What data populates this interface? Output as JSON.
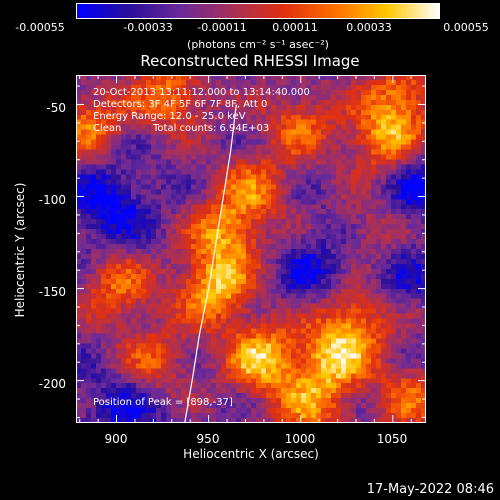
{
  "colorbar": {
    "ticks": [
      "-0.00055",
      "-0.00033",
      "-0.00011",
      "0.00011",
      "0.00033",
      "0.00055"
    ],
    "range": [
      -0.00055,
      0.00055
    ],
    "unit": "(photons cm⁻² s⁻¹ asec⁻²)",
    "colors": [
      "#0000ff",
      "#2b0f9a",
      "#6b2a9a",
      "#a8305a",
      "#e03010",
      "#ff7000",
      "#ffc800",
      "#ffffff"
    ]
  },
  "image_info": {
    "time_range": "20-Oct-2013 13:11:12.000 to 13:14:40.000",
    "detectors": "Detectors: 3F 4F 5F 6F 7F 8F, Att 0",
    "energy": "Energy Range: 12.0 - 25.0 keV",
    "method": "Clean",
    "counts": "Total counts: 6.94E+03",
    "peak": "Position of Peak = [898,-37]"
  },
  "footer": {
    "date": "17-May-2022 08:46"
  },
  "chart_data": {
    "type": "heatmap",
    "title": "Reconstructed RHESSI Image",
    "xlabel": "Heliocentric X (arcsec)",
    "ylabel": "Heliocentric Y (arcsec)",
    "xlim": [
      878,
      1068
    ],
    "ylim": [
      -223,
      -34
    ],
    "xticks": [
      900,
      950,
      1000,
      1050
    ],
    "yticks": [
      -200,
      -150,
      -100,
      -50
    ],
    "limb_curve": {
      "x": [
        937,
        941,
        945,
        950,
        954,
        958,
        962,
        965
      ],
      "y": [
        -223,
        -200,
        -175,
        -150,
        -125,
        -100,
        -75,
        -50
      ]
    },
    "bright_regions": [
      {
        "x": 979,
        "y": -188,
        "strength": 1.0
      },
      {
        "x": 953,
        "y": -150,
        "strength": 0.95
      },
      {
        "x": 960,
        "y": -120,
        "strength": 0.8
      },
      {
        "x": 1018,
        "y": -188,
        "strength": 0.9
      },
      {
        "x": 1030,
        "y": -165,
        "strength": 0.75
      },
      {
        "x": 1045,
        "y": -70,
        "strength": 0.85
      },
      {
        "x": 1055,
        "y": -45,
        "strength": 0.7
      },
      {
        "x": 930,
        "y": -45,
        "strength": 0.75
      },
      {
        "x": 885,
        "y": -60,
        "strength": 0.7
      },
      {
        "x": 900,
        "y": -150,
        "strength": 0.65
      },
      {
        "x": 1000,
        "y": -60,
        "strength": 0.6
      },
      {
        "x": 920,
        "y": -190,
        "strength": 0.6
      },
      {
        "x": 1005,
        "y": -215,
        "strength": 0.65
      },
      {
        "x": 1060,
        "y": -210,
        "strength": 0.6
      },
      {
        "x": 975,
        "y": -95,
        "strength": 0.6
      },
      {
        "x": 1040,
        "y": -120,
        "strength": 0.55
      }
    ],
    "dim_regions": [
      {
        "x": 895,
        "y": -105,
        "strength": 1.0
      },
      {
        "x": 1060,
        "y": -95,
        "strength": 0.9
      },
      {
        "x": 1010,
        "y": -140,
        "strength": 0.7
      },
      {
        "x": 905,
        "y": -215,
        "strength": 0.8
      },
      {
        "x": 1050,
        "y": -140,
        "strength": 0.7
      }
    ]
  }
}
